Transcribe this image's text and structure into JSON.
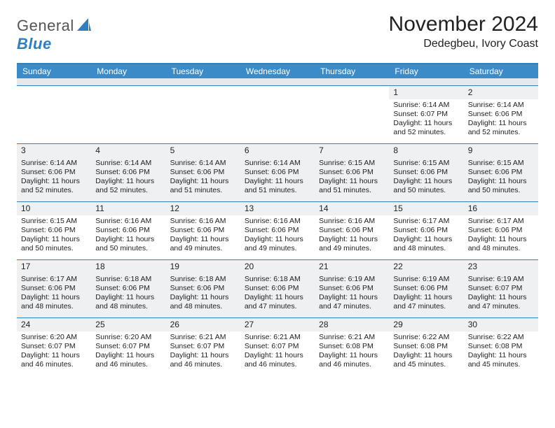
{
  "logo": {
    "text_gray": "General",
    "text_blue": "Blue"
  },
  "header": {
    "title": "November 2024",
    "location": "Dedegbeu, Ivory Coast"
  },
  "colors": {
    "header_bar": "#3b8bc9",
    "rule": "#2f7fc1",
    "alt_row": "#eef0f2",
    "subbar": "#e6e9ec"
  },
  "day_names": [
    "Sunday",
    "Monday",
    "Tuesday",
    "Wednesday",
    "Thursday",
    "Friday",
    "Saturday"
  ],
  "weeks": [
    [
      {
        "empty": true
      },
      {
        "empty": true
      },
      {
        "empty": true
      },
      {
        "empty": true
      },
      {
        "empty": true
      },
      {
        "num": "1",
        "sunrise": "Sunrise: 6:14 AM",
        "sunset": "Sunset: 6:07 PM",
        "day1": "Daylight: 11 hours",
        "day2": "and 52 minutes."
      },
      {
        "num": "2",
        "sunrise": "Sunrise: 6:14 AM",
        "sunset": "Sunset: 6:06 PM",
        "day1": "Daylight: 11 hours",
        "day2": "and 52 minutes."
      }
    ],
    [
      {
        "num": "3",
        "sunrise": "Sunrise: 6:14 AM",
        "sunset": "Sunset: 6:06 PM",
        "day1": "Daylight: 11 hours",
        "day2": "and 52 minutes."
      },
      {
        "num": "4",
        "sunrise": "Sunrise: 6:14 AM",
        "sunset": "Sunset: 6:06 PM",
        "day1": "Daylight: 11 hours",
        "day2": "and 52 minutes."
      },
      {
        "num": "5",
        "sunrise": "Sunrise: 6:14 AM",
        "sunset": "Sunset: 6:06 PM",
        "day1": "Daylight: 11 hours",
        "day2": "and 51 minutes."
      },
      {
        "num": "6",
        "sunrise": "Sunrise: 6:14 AM",
        "sunset": "Sunset: 6:06 PM",
        "day1": "Daylight: 11 hours",
        "day2": "and 51 minutes."
      },
      {
        "num": "7",
        "sunrise": "Sunrise: 6:15 AM",
        "sunset": "Sunset: 6:06 PM",
        "day1": "Daylight: 11 hours",
        "day2": "and 51 minutes."
      },
      {
        "num": "8",
        "sunrise": "Sunrise: 6:15 AM",
        "sunset": "Sunset: 6:06 PM",
        "day1": "Daylight: 11 hours",
        "day2": "and 50 minutes."
      },
      {
        "num": "9",
        "sunrise": "Sunrise: 6:15 AM",
        "sunset": "Sunset: 6:06 PM",
        "day1": "Daylight: 11 hours",
        "day2": "and 50 minutes."
      }
    ],
    [
      {
        "num": "10",
        "sunrise": "Sunrise: 6:15 AM",
        "sunset": "Sunset: 6:06 PM",
        "day1": "Daylight: 11 hours",
        "day2": "and 50 minutes."
      },
      {
        "num": "11",
        "sunrise": "Sunrise: 6:16 AM",
        "sunset": "Sunset: 6:06 PM",
        "day1": "Daylight: 11 hours",
        "day2": "and 50 minutes."
      },
      {
        "num": "12",
        "sunrise": "Sunrise: 6:16 AM",
        "sunset": "Sunset: 6:06 PM",
        "day1": "Daylight: 11 hours",
        "day2": "and 49 minutes."
      },
      {
        "num": "13",
        "sunrise": "Sunrise: 6:16 AM",
        "sunset": "Sunset: 6:06 PM",
        "day1": "Daylight: 11 hours",
        "day2": "and 49 minutes."
      },
      {
        "num": "14",
        "sunrise": "Sunrise: 6:16 AM",
        "sunset": "Sunset: 6:06 PM",
        "day1": "Daylight: 11 hours",
        "day2": "and 49 minutes."
      },
      {
        "num": "15",
        "sunrise": "Sunrise: 6:17 AM",
        "sunset": "Sunset: 6:06 PM",
        "day1": "Daylight: 11 hours",
        "day2": "and 48 minutes."
      },
      {
        "num": "16",
        "sunrise": "Sunrise: 6:17 AM",
        "sunset": "Sunset: 6:06 PM",
        "day1": "Daylight: 11 hours",
        "day2": "and 48 minutes."
      }
    ],
    [
      {
        "num": "17",
        "sunrise": "Sunrise: 6:17 AM",
        "sunset": "Sunset: 6:06 PM",
        "day1": "Daylight: 11 hours",
        "day2": "and 48 minutes."
      },
      {
        "num": "18",
        "sunrise": "Sunrise: 6:18 AM",
        "sunset": "Sunset: 6:06 PM",
        "day1": "Daylight: 11 hours",
        "day2": "and 48 minutes."
      },
      {
        "num": "19",
        "sunrise": "Sunrise: 6:18 AM",
        "sunset": "Sunset: 6:06 PM",
        "day1": "Daylight: 11 hours",
        "day2": "and 48 minutes."
      },
      {
        "num": "20",
        "sunrise": "Sunrise: 6:18 AM",
        "sunset": "Sunset: 6:06 PM",
        "day1": "Daylight: 11 hours",
        "day2": "and 47 minutes."
      },
      {
        "num": "21",
        "sunrise": "Sunrise: 6:19 AM",
        "sunset": "Sunset: 6:06 PM",
        "day1": "Daylight: 11 hours",
        "day2": "and 47 minutes."
      },
      {
        "num": "22",
        "sunrise": "Sunrise: 6:19 AM",
        "sunset": "Sunset: 6:06 PM",
        "day1": "Daylight: 11 hours",
        "day2": "and 47 minutes."
      },
      {
        "num": "23",
        "sunrise": "Sunrise: 6:19 AM",
        "sunset": "Sunset: 6:07 PM",
        "day1": "Daylight: 11 hours",
        "day2": "and 47 minutes."
      }
    ],
    [
      {
        "num": "24",
        "sunrise": "Sunrise: 6:20 AM",
        "sunset": "Sunset: 6:07 PM",
        "day1": "Daylight: 11 hours",
        "day2": "and 46 minutes."
      },
      {
        "num": "25",
        "sunrise": "Sunrise: 6:20 AM",
        "sunset": "Sunset: 6:07 PM",
        "day1": "Daylight: 11 hours",
        "day2": "and 46 minutes."
      },
      {
        "num": "26",
        "sunrise": "Sunrise: 6:21 AM",
        "sunset": "Sunset: 6:07 PM",
        "day1": "Daylight: 11 hours",
        "day2": "and 46 minutes."
      },
      {
        "num": "27",
        "sunrise": "Sunrise: 6:21 AM",
        "sunset": "Sunset: 6:07 PM",
        "day1": "Daylight: 11 hours",
        "day2": "and 46 minutes."
      },
      {
        "num": "28",
        "sunrise": "Sunrise: 6:21 AM",
        "sunset": "Sunset: 6:08 PM",
        "day1": "Daylight: 11 hours",
        "day2": "and 46 minutes."
      },
      {
        "num": "29",
        "sunrise": "Sunrise: 6:22 AM",
        "sunset": "Sunset: 6:08 PM",
        "day1": "Daylight: 11 hours",
        "day2": "and 45 minutes."
      },
      {
        "num": "30",
        "sunrise": "Sunrise: 6:22 AM",
        "sunset": "Sunset: 6:08 PM",
        "day1": "Daylight: 11 hours",
        "day2": "and 45 minutes."
      }
    ]
  ]
}
